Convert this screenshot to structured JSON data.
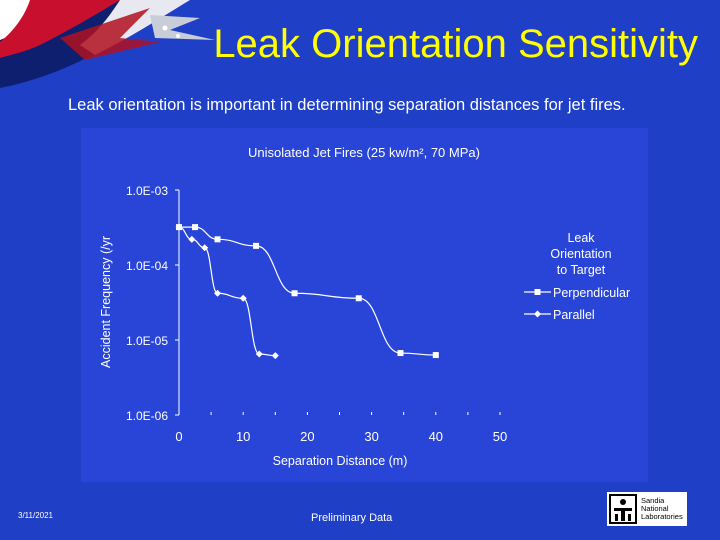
{
  "slide": {
    "title": "Leak Orientation Sensitivity",
    "subtitle": "Leak orientation is important in determining separation distances for jet fires.",
    "date": "3/11/2021",
    "footer_note": "Preliminary Data",
    "logo_lines": [
      "Sandia",
      "National",
      "Laboratories"
    ]
  },
  "colors": {
    "background": "#1f3fc6",
    "chart_panel": "#2945d8",
    "title": "#ffff00",
    "text": "#ffffff"
  },
  "chart_data": {
    "type": "line",
    "title": "Unisolated Jet Fires (25 kw/m², 70 MPa)",
    "xlabel": "Separation Distance (m)",
    "ylabel": "Accident Frequency (/yr",
    "xlim": [
      0,
      50
    ],
    "ylim": [
      1e-06,
      0.001
    ],
    "y_scale": "log",
    "x_ticks": [
      "0",
      "10",
      "20",
      "30",
      "40",
      "50"
    ],
    "y_ticks": [
      "1.0E-03",
      "1.0E-04",
      "1.0E-05",
      "1.0E-06"
    ],
    "legend_title": "Leak Orientation to Target",
    "legend_position": "right",
    "series": [
      {
        "name": "Perpendicular",
        "marker": "square",
        "x": [
          0,
          2.5,
          6,
          12,
          18,
          28,
          34.5,
          40
        ],
        "y": [
          0.00032,
          0.00032,
          0.00022,
          0.00018,
          4.2e-05,
          3.6e-05,
          6.7e-06,
          6.3e-06
        ]
      },
      {
        "name": "Parallel",
        "marker": "diamond",
        "x": [
          0,
          2,
          4,
          6,
          10,
          12.5,
          15
        ],
        "y": [
          0.00032,
          0.00022,
          0.00017,
          4.2e-05,
          3.6e-05,
          6.5e-06,
          6.2e-06
        ]
      }
    ]
  }
}
